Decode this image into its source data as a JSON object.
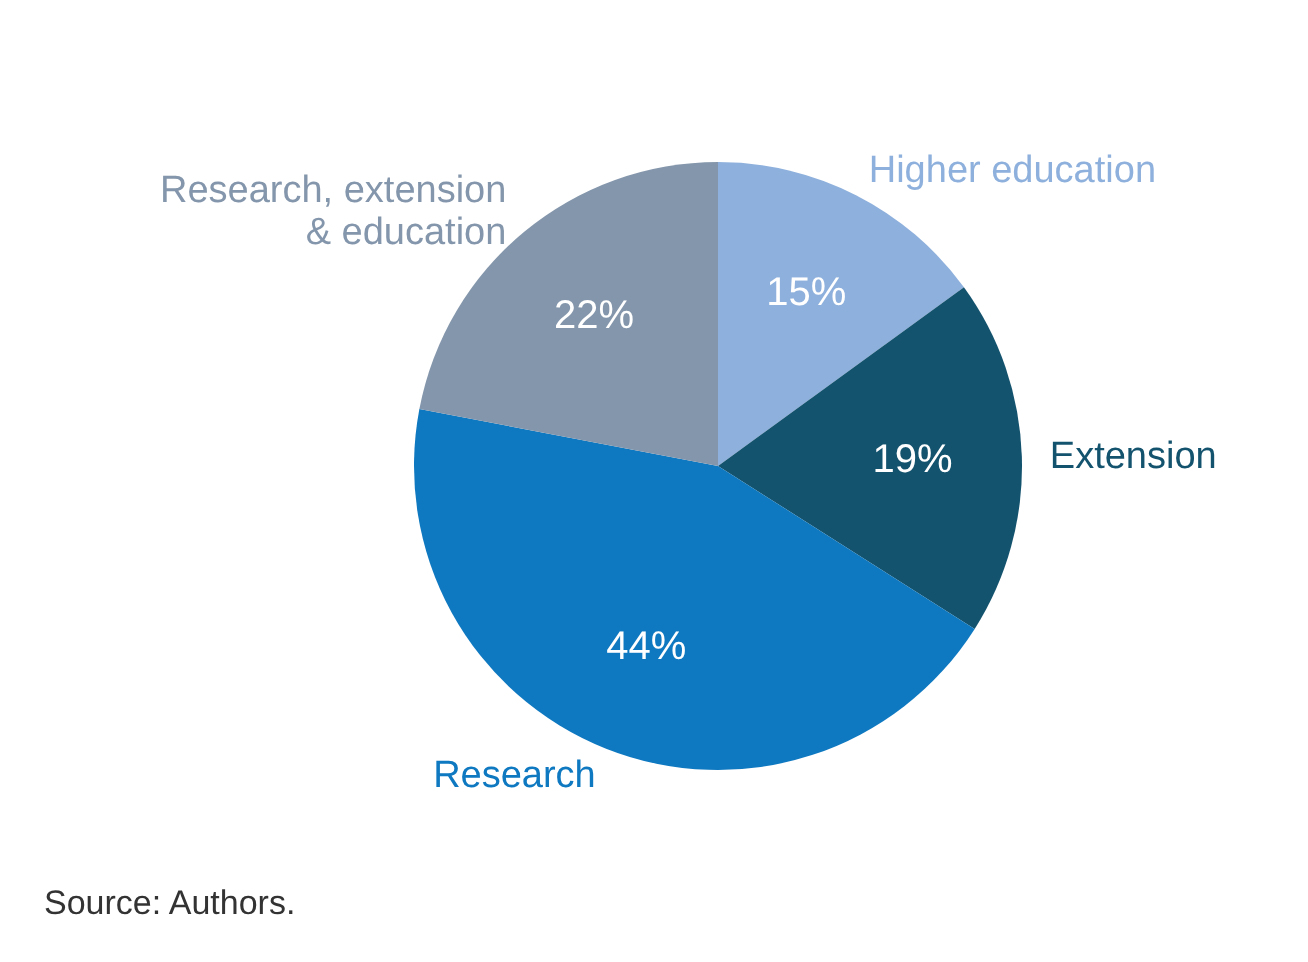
{
  "chart_data": {
    "type": "pie",
    "categories": [
      "Higher education",
      "Extension",
      "Research",
      "Research, extension & education"
    ],
    "values": [
      15,
      19,
      44,
      22
    ],
    "colors": [
      "#8eb0dc",
      "#14536e",
      "#0e78c0",
      "#8496ab"
    ],
    "value_labels": [
      "15%",
      "19%",
      "44%",
      "22%"
    ],
    "annotations": [
      "Source: Authors."
    ]
  }
}
